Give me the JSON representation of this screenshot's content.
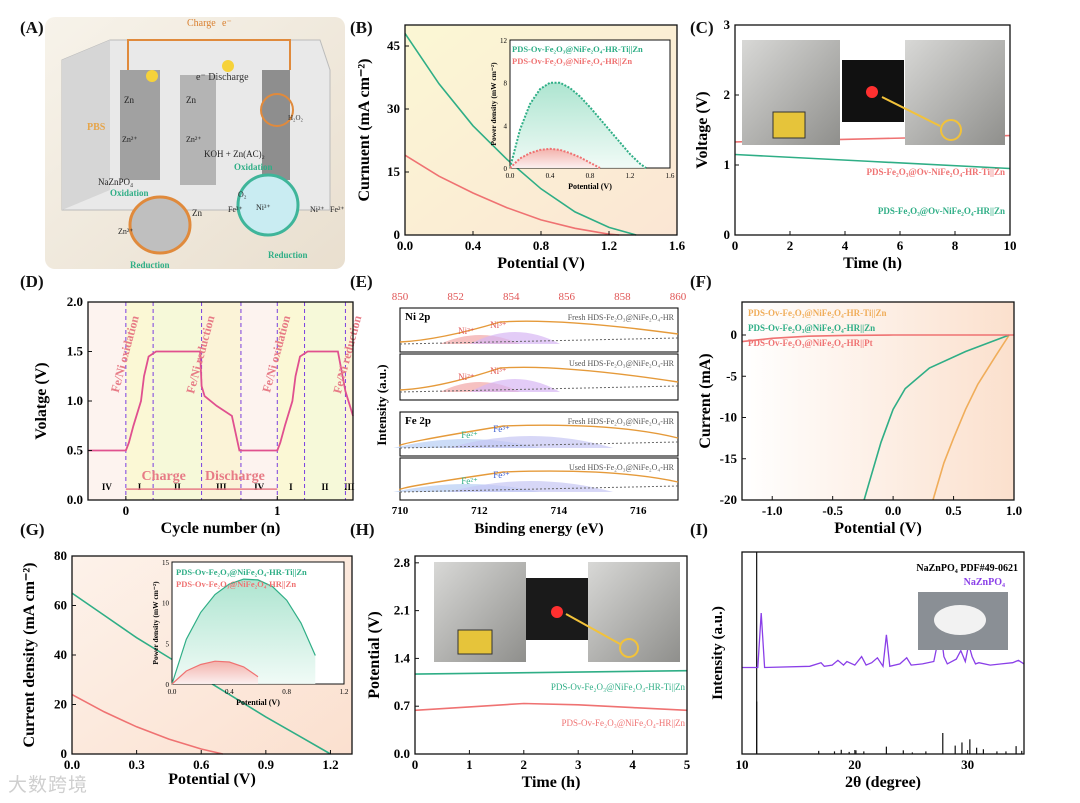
{
  "panel_labels": [
    "(A)",
    "(B)",
    "(C)",
    "(D)",
    "(E)",
    "(F)",
    "(G)",
    "(H)",
    "(I)"
  ],
  "watermark": "大数跨境",
  "colors": {
    "green": "#2fae86",
    "red": "#ef7272",
    "orange": "#f0ad5a",
    "purple": "#8a3fe8",
    "black": "#111111",
    "pink": "#e0508f",
    "fill_green": "#bfeadb",
    "fill_red": "#fbd3cf",
    "fill_yellow": "#fbf6cf",
    "fill_peach": "#fbe2cf"
  },
  "panelA": {
    "labels": {
      "charge": "Charge",
      "electron": "e⁻",
      "discharge": "e⁻ Discharge",
      "zn1": "Zn",
      "zn2": "Zn",
      "zn_ion1": "Zn²⁺",
      "zn_ion2": "Zn²⁺",
      "pbs": "PBS",
      "electrolyte": "KOH + Zn(AC)₂",
      "oxidation1": "Oxidation",
      "oxidation2": "Oxidation",
      "nazn": "NaZnPO₄",
      "reduction1": "Reduction",
      "reduction2": "Reduction",
      "zn3": "Zn",
      "zn_ion3": "Zn²⁺",
      "o2": "O₂",
      "fe3": "Fe³⁺",
      "ni3": "Ni³⁺",
      "ni2": "Ni²⁺",
      "fe2": "Fe²⁺",
      "h2o2": "H₂O₂"
    }
  },
  "chart_data": [
    {
      "id": "B",
      "type": "line",
      "xlabel": "Potential (V)",
      "ylabel": "Curnuent (mA cm⁻²)",
      "xlim": [
        0,
        1.6
      ],
      "ylim": [
        0,
        50
      ],
      "xticks": [
        "0.0",
        "0.4",
        "0.8",
        "1.2",
        "1.6"
      ],
      "xtick_values": [
        0,
        0.4,
        0.8,
        1.2,
        1.6
      ],
      "yticks": [
        "0",
        "15",
        "30",
        "45"
      ],
      "ytick_values": [
        0,
        15,
        30,
        45
      ],
      "series": [
        {
          "name": "PDS-Ov-Fe₂O₃@NiFe₂O₄-HR-Ti||Zn",
          "color": "green",
          "x": [
            0,
            0.2,
            0.4,
            0.6,
            0.8,
            1.0,
            1.2,
            1.36
          ],
          "y": [
            48,
            36,
            26,
            18,
            11,
            5.5,
            1.8,
            0
          ]
        },
        {
          "name": "PDS-Ov-Fe₂O₃@NiFe₂O₄-HR||Zn",
          "color": "red",
          "x": [
            0,
            0.2,
            0.4,
            0.6,
            0.8,
            1.0,
            1.2,
            1.26
          ],
          "y": [
            19,
            14,
            10,
            6.5,
            3.6,
            1.6,
            0.2,
            0
          ]
        }
      ],
      "inset": {
        "xlabel": "Potential (V)",
        "ylabel": "Power density (mW cm⁻²)",
        "xlim": [
          0,
          1.6
        ],
        "ylim": [
          0,
          12
        ],
        "xticks": [
          "0.0",
          "0.4",
          "0.8",
          "1.2",
          "1.6"
        ],
        "yticks": [
          "0",
          "4",
          "8",
          "12"
        ],
        "series": [
          {
            "name": "green",
            "x": [
              0,
              0.1,
              0.2,
              0.3,
              0.4,
              0.5,
              0.6,
              0.7,
              0.8,
              0.9,
              1.0,
              1.1,
              1.2,
              1.3,
              1.36
            ],
            "y": [
              0,
              3.6,
              6.0,
              7.4,
              8.0,
              8.0,
              7.5,
              6.7,
              5.7,
              4.6,
              3.5,
              2.4,
              1.3,
              0.4,
              0
            ]
          },
          {
            "name": "red",
            "x": [
              0,
              0.1,
              0.2,
              0.3,
              0.4,
              0.5,
              0.6,
              0.7,
              0.8,
              0.9
            ],
            "y": [
              0,
              0.9,
              1.4,
              1.7,
              1.8,
              1.7,
              1.4,
              1.0,
              0.5,
              0
            ]
          }
        ]
      }
    },
    {
      "id": "C",
      "type": "line",
      "xlabel": "Time (h)",
      "ylabel": "Voltage (V)",
      "xlim": [
        0,
        10
      ],
      "ylim": [
        0,
        3
      ],
      "xticks": [
        "0",
        "2",
        "4",
        "6",
        "8",
        "10"
      ],
      "xtick_values": [
        0,
        2,
        4,
        6,
        8,
        10
      ],
      "yticks": [
        "0",
        "1",
        "2",
        "3"
      ],
      "ytick_values": [
        0,
        1,
        2,
        3
      ],
      "series": [
        {
          "name": "PDS-Fe₂O₃@Ov-NiFe₂O₄-HR-Ti||Zn",
          "color": "red",
          "x": [
            0,
            10
          ],
          "y": [
            1.33,
            1.42
          ]
        },
        {
          "name": "PDS-Fe₂O₃@Ov-NiFe₂O₄-HR||Zn",
          "color": "green",
          "x": [
            0,
            5,
            10
          ],
          "y": [
            1.15,
            1.05,
            0.95
          ]
        }
      ]
    },
    {
      "id": "D",
      "type": "line",
      "xlabel": "Cycle number (n)",
      "ylabel": "Volatge (V)",
      "xlim": [
        -0.25,
        1.5
      ],
      "ylim": [
        0,
        2.0
      ],
      "xticks": [
        "0",
        "1"
      ],
      "xtick_values": [
        0,
        1
      ],
      "yticks": [
        "0.0",
        "0.5",
        "1.0",
        "1.5",
        "2.0"
      ],
      "ytick_values": [
        0,
        0.5,
        1.0,
        1.5,
        2.0
      ],
      "series": [
        {
          "name": "cycle",
          "color": "pink",
          "x": [
            -0.25,
            0,
            0.02,
            0.05,
            0.1,
            0.12,
            0.15,
            0.2,
            0.3,
            0.4,
            0.49,
            0.5,
            0.52,
            0.6,
            0.7,
            0.75,
            1.0,
            1.02,
            1.05,
            1.1,
            1.12,
            1.15,
            1.2,
            1.3,
            1.4,
            1.45,
            1.5
          ],
          "y": [
            0.5,
            0.5,
            0.58,
            0.75,
            1.0,
            1.25,
            1.45,
            1.5,
            1.5,
            1.5,
            1.5,
            1.15,
            1.05,
            0.95,
            0.85,
            0.5,
            0.5,
            0.58,
            0.75,
            1.0,
            1.25,
            1.45,
            1.5,
            1.5,
            1.5,
            1.1,
            0.85
          ]
        }
      ],
      "region_bounds": [
        0,
        0.18,
        0.5,
        0.76,
        1.0,
        1.18,
        1.45
      ],
      "regions": [
        "IV",
        "I",
        "II",
        "III",
        "IV",
        "I",
        "II",
        "III"
      ],
      "annotations": [
        "Fe/Ni oxidation",
        "Fe/Ni reduction",
        "Fe/Ni oxidation",
        "Fe/Ni reduction",
        "Charge",
        "Discharge"
      ]
    },
    {
      "id": "E",
      "type": "line",
      "xlabel": "Binding energy (eV)",
      "ylabel": "Intensity (a.u.)",
      "top_axis": {
        "xlim": [
          850,
          860
        ],
        "xticks": [
          "850",
          "852",
          "854",
          "856",
          "858",
          "860"
        ],
        "xtick_values": [
          850,
          852,
          854,
          856,
          858,
          860
        ]
      },
      "bottom_axis": {
        "xlim": [
          710,
          717
        ],
        "xticks": [
          "710",
          "712",
          "714",
          "716"
        ],
        "xtick_values": [
          710,
          712,
          714,
          716
        ]
      },
      "subpanels": [
        {
          "group": "Ni 2p",
          "label": "Fresh HDS-Fe₂O₃@NiFe₂O₄-HR",
          "peaks": [
            "Ni²⁺",
            "Ni³⁺"
          ]
        },
        {
          "group": "",
          "label": "Used HDS-Fe₂O₃@NiFe₂O₄-HR",
          "peaks": [
            "Ni²⁺",
            "Ni³⁺"
          ]
        },
        {
          "group": "Fe 2p",
          "label": "Fresh HDS-Fe₂O₃@NiFe₂O₄-HR",
          "peaks": [
            "Fe²⁺",
            "Fe³⁺"
          ]
        },
        {
          "group": "",
          "label": "Used HDS-Fe₂O₃@NiFe₂O₄-HR",
          "peaks": [
            "Fe²⁺",
            "Fe³⁺"
          ]
        }
      ]
    },
    {
      "id": "F",
      "type": "line",
      "xlabel": "Potential (V)",
      "ylabel": "Current (mA)",
      "xlim": [
        -1.25,
        1.0
      ],
      "ylim": [
        -20,
        4
      ],
      "xticks": [
        "-1.0",
        "-0.5",
        "0.0",
        "0.5",
        "1.0"
      ],
      "xtick_values": [
        -1.0,
        -0.5,
        0.0,
        0.5,
        1.0
      ],
      "yticks": [
        "-20",
        "-15",
        "-10",
        "-5",
        "0"
      ],
      "ytick_values": [
        -20,
        -15,
        -10,
        -5,
        0
      ],
      "series": [
        {
          "name": "PDS-Ov-Fe₂O₃@NiFe₂O₄-HR-Ti||Zn",
          "color": "orange",
          "x": [
            0.96,
            0.85,
            0.7,
            0.6,
            0.5,
            0.42,
            0.36,
            0.33
          ],
          "y": [
            0,
            -2.5,
            -6,
            -9,
            -12.5,
            -15.5,
            -18.5,
            -20
          ]
        },
        {
          "name": "PDS-Ov-Fe₂O₃@NiFe₂O₄-HR||Zn",
          "color": "green",
          "x": [
            0.96,
            0.6,
            0.3,
            0.1,
            0.0,
            -0.1,
            -0.2,
            -0.24
          ],
          "y": [
            0,
            -2.0,
            -4.0,
            -6.5,
            -9,
            -13,
            -18,
            -20
          ]
        },
        {
          "name": "PDS-Ov-Fe₂O₃@NiFe₂O₄-HR||Pt",
          "color": "red",
          "x": [
            -1.25,
            -1.0,
            -0.7,
            -0.4,
            0,
            0.5,
            1.0
          ],
          "y": [
            -0.8,
            -0.4,
            -0.15,
            -0.05,
            0,
            0,
            0
          ]
        }
      ]
    },
    {
      "id": "G",
      "type": "line",
      "xlabel": "Potential (V)",
      "ylabel": "Current density (mA cm⁻²)",
      "xlim": [
        0,
        1.3
      ],
      "ylim": [
        0,
        80
      ],
      "xticks": [
        "0.0",
        "0.3",
        "0.6",
        "0.9",
        "1.2"
      ],
      "xtick_values": [
        0,
        0.3,
        0.6,
        0.9,
        1.2
      ],
      "yticks": [
        "0",
        "20",
        "40",
        "60",
        "80"
      ],
      "ytick_values": [
        0,
        20,
        40,
        60,
        80
      ],
      "series": [
        {
          "name": "PDS-Ov-Fe₂O₃@NiFe₂O₄-HR-Ti||Zn",
          "color": "green",
          "x": [
            0,
            0.15,
            0.3,
            0.45,
            0.6,
            0.75,
            0.9,
            1.05,
            1.2
          ],
          "y": [
            65,
            56,
            47,
            39,
            31,
            23,
            15,
            7.5,
            0
          ]
        },
        {
          "name": "PDS-Ov-Fe₂O₃@NiFe₂O₄-HR||Zn",
          "color": "red",
          "x": [
            0,
            0.15,
            0.3,
            0.45,
            0.6,
            0.7
          ],
          "y": [
            24,
            17,
            11,
            6,
            2,
            0
          ]
        }
      ],
      "inset": {
        "xlabel": "Potential (V)",
        "ylabel": "Power density (mW cm⁻²)",
        "xlim": [
          0,
          1.2
        ],
        "ylim": [
          0,
          15
        ],
        "xticks": [
          "0.0",
          "0.4",
          "0.8",
          "1.2"
        ],
        "yticks": [
          "0",
          "5",
          "10",
          "15"
        ],
        "series": [
          {
            "name": "green",
            "x": [
              0,
              0.1,
              0.2,
              0.3,
              0.4,
              0.5,
              0.6,
              0.7,
              0.8,
              0.9,
              1.0
            ],
            "y": [
              0,
              5.5,
              8.8,
              11.0,
              12.3,
              12.9,
              12.8,
              12.0,
              10.3,
              7.5,
              3.5
            ]
          },
          {
            "name": "red",
            "x": [
              0,
              0.1,
              0.2,
              0.3,
              0.4,
              0.5,
              0.6
            ],
            "y": [
              0,
              1.6,
              2.4,
              2.8,
              2.7,
              2.1,
              0.9
            ]
          }
        ]
      }
    },
    {
      "id": "H",
      "type": "line",
      "xlabel": "Time (h)",
      "ylabel": "Potential (V)",
      "xlim": [
        0,
        5
      ],
      "ylim": [
        0,
        2.9
      ],
      "xticks": [
        "0",
        "1",
        "2",
        "3",
        "4",
        "5"
      ],
      "xtick_values": [
        0,
        1,
        2,
        3,
        4,
        5
      ],
      "yticks": [
        "0.0",
        "0.7",
        "1.4",
        "2.1",
        "2.8"
      ],
      "ytick_values": [
        0,
        0.7,
        1.4,
        2.1,
        2.8
      ],
      "series": [
        {
          "name": "PDS-Ov-Fe₂O₃@NiFe₂O₄-HR-Ti||Zn",
          "color": "green",
          "x": [
            0,
            5
          ],
          "y": [
            1.17,
            1.22
          ]
        },
        {
          "name": "PDS-Ov-Fe₂O₃@NiFe₂O₄-HR||Zn",
          "color": "red",
          "x": [
            0,
            1,
            2,
            3,
            4,
            5
          ],
          "y": [
            0.64,
            0.69,
            0.74,
            0.72,
            0.68,
            0.64
          ]
        }
      ]
    },
    {
      "id": "I",
      "type": "line",
      "xlabel": "2θ (degree)",
      "ylabel": "Intensity (a.u.)",
      "xlim": [
        10,
        35
      ],
      "ylim": [
        0,
        100
      ],
      "xticks": [
        "10",
        "20",
        "30"
      ],
      "xtick_values": [
        10,
        20,
        30
      ],
      "legend": [
        "NaZnPO₄ PDF#49-0621",
        "NaZnPO₄"
      ],
      "pattern": {
        "x": [
          10,
          11,
          11.4,
          11.7,
          12,
          16,
          17,
          17.3,
          18,
          18.5,
          19,
          19.3,
          20,
          20.6,
          21,
          21.5,
          22,
          22.5,
          22.8,
          23.1,
          24,
          24.6,
          25,
          26,
          27,
          27.6,
          27.9,
          28.2,
          29,
          29.4,
          29.8,
          30.1,
          30.4,
          30.7,
          31,
          32,
          33,
          34,
          34.5,
          35
        ],
        "y": [
          13,
          13,
          13,
          58,
          13,
          14,
          17,
          14,
          15,
          19,
          15,
          18,
          15,
          22,
          15,
          17,
          21,
          14,
          40,
          14,
          16,
          21,
          15,
          16,
          18,
          45,
          22,
          16,
          20,
          27,
          18,
          32,
          22,
          16,
          17,
          15,
          16,
          17,
          19,
          16
        ]
      },
      "reference_sticks": {
        "x": [
          11.3,
          16.8,
          18.2,
          18.8,
          19.5,
          20.1,
          20.8,
          22.8,
          24.3,
          25.1,
          26.3,
          27.8,
          28.9,
          29.5,
          30.2,
          30.8,
          31.4,
          32.6,
          33.4,
          34.3,
          34.8
        ],
        "y": [
          100,
          6,
          5,
          8,
          4,
          7,
          5,
          14,
          7,
          3,
          5,
          40,
          16,
          22,
          28,
          12,
          9,
          5,
          5,
          15,
          6
        ]
      }
    }
  ]
}
